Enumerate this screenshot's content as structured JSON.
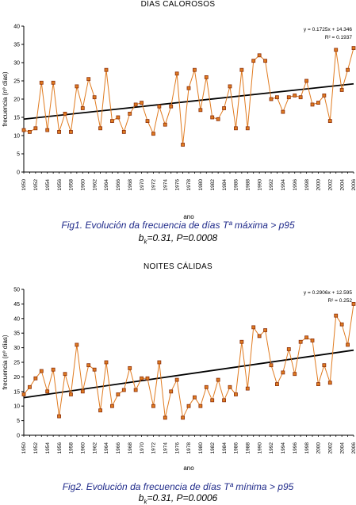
{
  "figures": [
    {
      "title": "DÍAS CALOROSOS",
      "caption": "Fig1. Evolución da frecuencia de días Tª máxima > p95",
      "stats_prefix": "b",
      "stats_sub": "k",
      "stats_rest": "=0.31, P=0.0008"
    },
    {
      "title": "NOITES CÁLIDAS",
      "caption": "Fig2. Evolución da frecuencia de días Tª mínima > p95",
      "stats_prefix": "b",
      "stats_sub": "k",
      "stats_rest": "=0.31, P=0.0006"
    }
  ],
  "chart_data": [
    {
      "type": "line",
      "title": "DÍAS CALOROSOS",
      "xlabel": "ano",
      "ylabel": "frecuencia (nº días)",
      "xlim": [
        1950,
        2006
      ],
      "ylim": [
        0,
        40
      ],
      "yticks": [
        0,
        5,
        10,
        15,
        20,
        25,
        30,
        35,
        40
      ],
      "xticks": [
        1950,
        1952,
        1954,
        1956,
        1958,
        1960,
        1962,
        1964,
        1966,
        1968,
        1970,
        1972,
        1974,
        1976,
        1978,
        1980,
        1982,
        1984,
        1986,
        1988,
        1990,
        1992,
        1994,
        1996,
        1998,
        2000,
        2002,
        2004,
        2006
      ],
      "grid": false,
      "line_color": "#e07b20",
      "marker_color": "#8b2e0a",
      "trend_color": "#000000",
      "x": [
        1950,
        1951,
        1952,
        1953,
        1954,
        1955,
        1956,
        1957,
        1958,
        1959,
        1960,
        1961,
        1962,
        1963,
        1964,
        1965,
        1966,
        1967,
        1968,
        1969,
        1970,
        1971,
        1972,
        1973,
        1974,
        1975,
        1976,
        1977,
        1978,
        1979,
        1980,
        1981,
        1982,
        1983,
        1984,
        1985,
        1986,
        1987,
        1988,
        1989,
        1990,
        1991,
        1992,
        1993,
        1994,
        1995,
        1996,
        1997,
        1998,
        1999,
        2000,
        2001,
        2002,
        2003,
        2004,
        2005,
        2006
      ],
      "values": [
        11.5,
        11,
        12,
        24.5,
        11.5,
        24.5,
        11,
        16,
        11,
        23.5,
        17.5,
        25.5,
        20.5,
        12,
        28,
        14,
        15,
        11,
        16,
        18.5,
        19,
        14,
        10.5,
        18,
        13,
        18,
        27,
        7.5,
        23,
        28,
        17,
        26,
        15,
        14.5,
        17.5,
        23.5,
        12,
        28,
        12,
        30.5,
        32,
        30.5,
        20,
        20.5,
        16.5,
        20.5,
        21,
        20.5,
        25,
        18.5,
        19,
        21,
        14,
        33.5,
        22.5,
        28,
        34
      ],
      "trend": {
        "slope": 0.1725,
        "intercept": 14.346
      },
      "annotations": [
        "y = 0.1725x + 14.346",
        "R² = 0.1937"
      ]
    },
    {
      "type": "line",
      "title": "NOITES CÁLIDAS",
      "xlabel": "ano",
      "ylabel": "frecuencia (nº días)",
      "xlim": [
        1950,
        2006
      ],
      "ylim": [
        0,
        50
      ],
      "yticks": [
        0,
        5,
        10,
        15,
        20,
        25,
        30,
        35,
        40,
        45,
        50
      ],
      "xticks": [
        1950,
        1952,
        1954,
        1956,
        1958,
        1960,
        1962,
        1964,
        1966,
        1968,
        1970,
        1972,
        1974,
        1976,
        1978,
        1980,
        1982,
        1984,
        1986,
        1988,
        1990,
        1992,
        1994,
        1996,
        1998,
        2000,
        2002,
        2004,
        2006
      ],
      "grid": false,
      "line_color": "#e07b20",
      "marker_color": "#8b2e0a",
      "trend_color": "#000000",
      "x": [
        1950,
        1951,
        1952,
        1953,
        1954,
        1955,
        1956,
        1957,
        1958,
        1959,
        1960,
        1961,
        1962,
        1963,
        1964,
        1965,
        1966,
        1967,
        1968,
        1969,
        1970,
        1971,
        1972,
        1973,
        1974,
        1975,
        1976,
        1977,
        1978,
        1979,
        1980,
        1981,
        1982,
        1983,
        1984,
        1985,
        1986,
        1987,
        1988,
        1989,
        1990,
        1991,
        1992,
        1993,
        1994,
        1995,
        1996,
        1997,
        1998,
        1999,
        2000,
        2001,
        2002,
        2003,
        2004,
        2005,
        2006
      ],
      "values": [
        14,
        16.5,
        19.5,
        22,
        15,
        22.5,
        6.5,
        21,
        14,
        31,
        15,
        24,
        22.5,
        8.5,
        25,
        10,
        14,
        15.5,
        23,
        15.5,
        19.5,
        19.5,
        10,
        25,
        6,
        15,
        19,
        6,
        10,
        13,
        10,
        16.5,
        12,
        19,
        12,
        16.5,
        14,
        32,
        16,
        37,
        34,
        36,
        24,
        17.5,
        21.5,
        29.5,
        21,
        32,
        33.5,
        32.5,
        17.5,
        24,
        18,
        41,
        38,
        31,
        45
      ],
      "trend": {
        "slope": 0.2906,
        "intercept": 12.595
      },
      "annotations": [
        "y = 0.2906x + 12.595",
        "R² = 0.252"
      ]
    }
  ]
}
